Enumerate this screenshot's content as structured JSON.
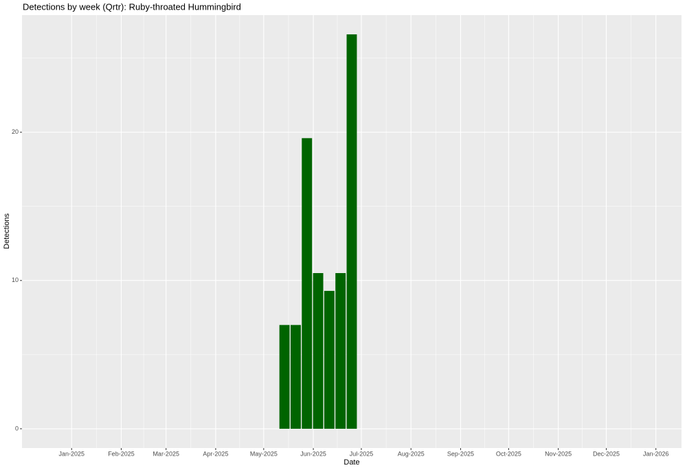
{
  "chart_data": {
    "type": "bar",
    "title": "Detections by week (Qrtr): Ruby-throated Hummingbird",
    "x_label": "Date",
    "y_label": "Detections",
    "x": [
      "2025-05-14",
      "2025-05-21",
      "2025-05-28",
      "2025-06-04",
      "2025-06-11",
      "2025-06-18",
      "2025-06-25"
    ],
    "values": [
      7,
      7,
      19.6,
      10.5,
      9.3,
      10.5,
      26.6
    ],
    "color": "#006400",
    "xlim": [
      "2024-12-01",
      "2026-01-17"
    ],
    "xticks": [
      {
        "value": "2025-01-01",
        "label": "Jan-2025"
      },
      {
        "value": "2025-02-01",
        "label": "Feb-2025"
      },
      {
        "value": "2025-03-01",
        "label": "Mar-2025"
      },
      {
        "value": "2025-04-01",
        "label": "Apr-2025"
      },
      {
        "value": "2025-05-01",
        "label": "May-2025"
      },
      {
        "value": "2025-06-01",
        "label": "Jun-2025"
      },
      {
        "value": "2025-07-01",
        "label": "Jul-2025"
      },
      {
        "value": "2025-08-01",
        "label": "Aug-2025"
      },
      {
        "value": "2025-09-01",
        "label": "Sep-2025"
      },
      {
        "value": "2025-10-01",
        "label": "Oct-2025"
      },
      {
        "value": "2025-11-01",
        "label": "Nov-2025"
      },
      {
        "value": "2025-12-01",
        "label": "Dec-2025"
      },
      {
        "value": "2026-01-01",
        "label": "Jan-2026"
      }
    ],
    "ylim": [
      -1.3,
      27.9
    ],
    "yticks": [
      0,
      10,
      20
    ],
    "grid": true
  }
}
